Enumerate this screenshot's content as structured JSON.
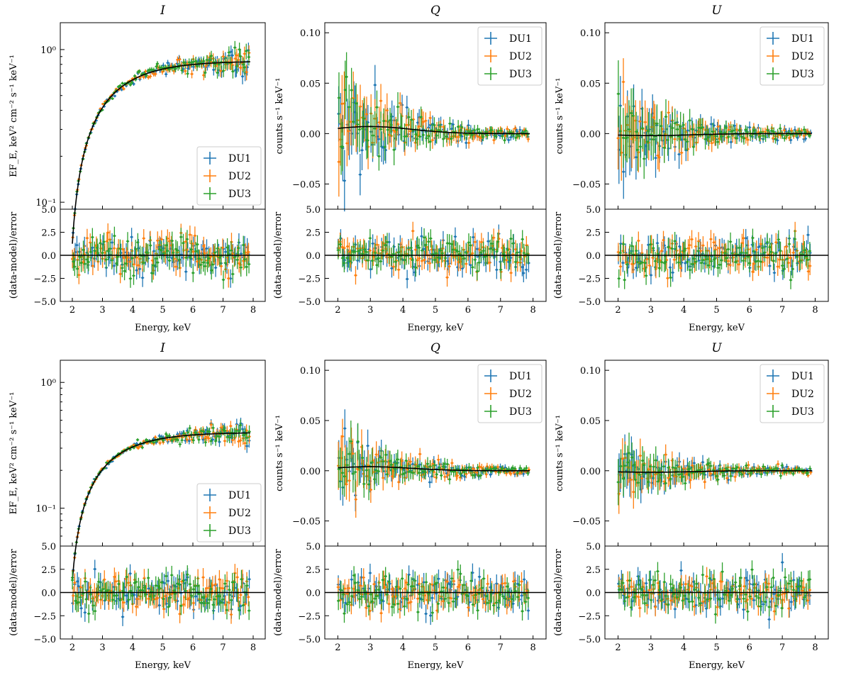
{
  "figure": {
    "colors": {
      "DU1": "#1f77b4",
      "DU2": "#ff7f0e",
      "DU3": "#2ca02c",
      "model": "#000000"
    },
    "xlabel": "Energy, keV",
    "xticks": [
      2,
      3,
      4,
      5,
      6,
      7,
      8
    ],
    "xtick_labels": [
      "2",
      "3",
      "4",
      "5",
      "6",
      "7",
      "8"
    ],
    "resid_ylabel": "(data-model)/error",
    "resid_yticks": [
      -5.0,
      -2.5,
      0.0,
      2.5,
      5.0
    ],
    "resid_ytick_labels": [
      "−5.0",
      "−2.5",
      "0.0",
      "2.5",
      "5.0"
    ],
    "stokes_ylabel": "counts s⁻¹ keV⁻¹",
    "stokes_yticks": [
      -0.05,
      0.0,
      0.05,
      0.1
    ],
    "stokes_ytick_labels": [
      "−0.05",
      "0.00",
      "0.05",
      "0.10"
    ],
    "legend": [
      "DU1",
      "DU2",
      "DU3"
    ]
  },
  "chart_data": [
    {
      "row": 1,
      "panel": "I",
      "type": "scatter",
      "title": "I",
      "ylabel": "EF_E, keV² cm⁻² s⁻¹ keV⁻¹",
      "yscale": "log",
      "ylim": [
        0.09,
        1.5
      ],
      "ytick_labels": [
        "10⁻¹",
        "10⁰"
      ],
      "xlim": [
        1.6,
        8.4
      ],
      "model": {
        "amplitude": 0.84,
        "scale_keV": 1.6,
        "emin": 2.0,
        "emax": 7.9
      },
      "legend_position": "lower-right",
      "series": [
        "DU1",
        "DU2",
        "DU3"
      ]
    },
    {
      "row": 1,
      "panel": "Q",
      "type": "scatter",
      "title": "Q",
      "ylabel": "counts s⁻¹ keV⁻¹",
      "yscale": "linear",
      "ylim": [
        -0.075,
        0.11
      ],
      "xlim": [
        1.6,
        8.4
      ],
      "model": {
        "peak": 0.007,
        "peak_energy": 3.0
      },
      "scatter_amplitude": 0.026,
      "legend_position": "top-right",
      "series": [
        "DU1",
        "DU2",
        "DU3"
      ]
    },
    {
      "row": 1,
      "panel": "U",
      "type": "scatter",
      "title": "U",
      "ylabel": "counts s⁻¹ keV⁻¹",
      "yscale": "linear",
      "ylim": [
        -0.075,
        0.11
      ],
      "xlim": [
        1.6,
        8.4
      ],
      "model": {
        "peak": -0.002,
        "peak_energy": 3.0
      },
      "scatter_amplitude": 0.026,
      "legend_position": "top-right",
      "series": [
        "DU1",
        "DU2",
        "DU3"
      ]
    },
    {
      "row": 2,
      "panel": "I",
      "type": "scatter",
      "title": "I",
      "ylabel": "EF_E, keV² cm⁻² s⁻¹ keV⁻¹",
      "yscale": "log",
      "ylim": [
        0.05,
        1.5
      ],
      "ytick_labels": [
        "10⁻¹",
        "10⁰"
      ],
      "xlim": [
        1.6,
        8.4
      ],
      "model": {
        "amplitude": 0.4,
        "scale_keV": 1.55,
        "emin": 2.0,
        "emax": 7.9
      },
      "legend_position": "lower-right",
      "series": [
        "DU1",
        "DU2",
        "DU3"
      ]
    },
    {
      "row": 2,
      "panel": "Q",
      "type": "scatter",
      "title": "Q",
      "ylabel": "counts s⁻¹ keV⁻¹",
      "yscale": "linear",
      "ylim": [
        -0.075,
        0.11
      ],
      "xlim": [
        1.6,
        8.4
      ],
      "model": {
        "peak": 0.004,
        "peak_energy": 3.0
      },
      "scatter_amplitude": 0.018,
      "legend_position": "top-right",
      "series": [
        "DU1",
        "DU2",
        "DU3"
      ]
    },
    {
      "row": 2,
      "panel": "U",
      "type": "scatter",
      "title": "U",
      "ylabel": "counts s⁻¹ keV⁻¹",
      "yscale": "linear",
      "ylim": [
        -0.075,
        0.11
      ],
      "xlim": [
        1.6,
        8.4
      ],
      "model": {
        "peak": -0.0015,
        "peak_energy": 3.0
      },
      "scatter_amplitude": 0.017,
      "legend_position": "top-right",
      "series": [
        "DU1",
        "DU2",
        "DU3"
      ]
    }
  ]
}
